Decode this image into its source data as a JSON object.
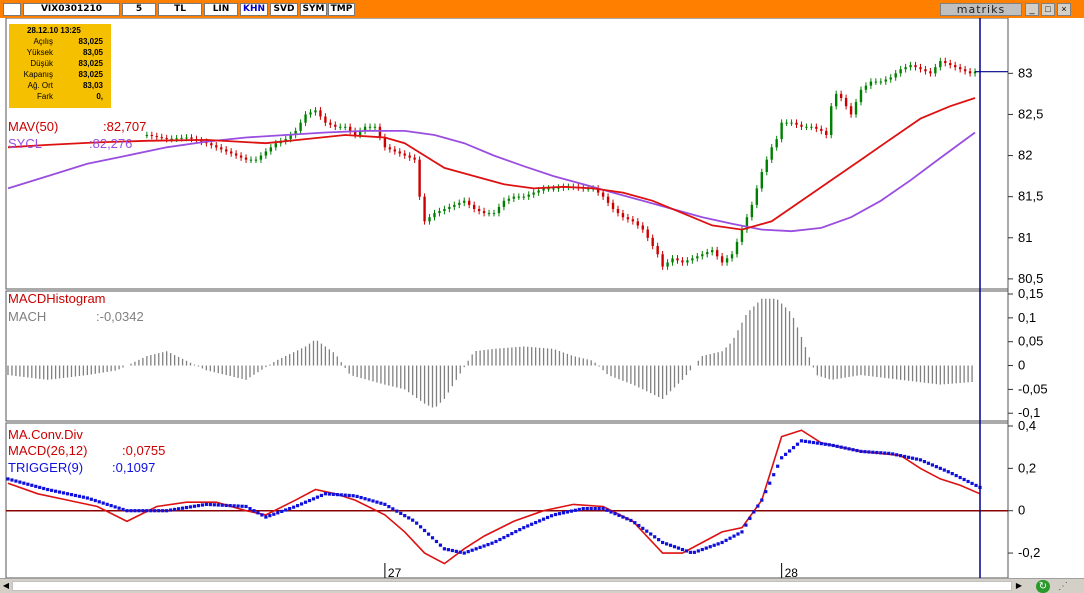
{
  "toolbar": {
    "symbol": "VIX0301210",
    "period": "5",
    "currency": "TL",
    "scale": "LIN",
    "chart_type": "KHN",
    "buttons": [
      "SVD",
      "SYM",
      "TMP"
    ],
    "brand": "matriks"
  },
  "info_box": {
    "datetime": "28.12.10 13:25",
    "rows": [
      {
        "label": "Açılış",
        "value": "83,025"
      },
      {
        "label": "Yüksek",
        "value": "83,05"
      },
      {
        "label": "Düşük",
        "value": "83,025"
      },
      {
        "label": "Kapanış",
        "value": "83,025"
      },
      {
        "label": "Ağ. Ort",
        "value": "83,03"
      },
      {
        "label": "Fark",
        "value": "0,"
      }
    ]
  },
  "colors": {
    "price_up": "#008000",
    "price_down": "#cc0000",
    "mav": "#dd1111",
    "sycl": "#9a4ee0",
    "macd": "#dd1111",
    "trigger": "#1010dd",
    "histogram": "#808080",
    "zero_line": "#8b0000",
    "cursor": "#00008b"
  },
  "chart_data": [
    {
      "type": "line",
      "panel": "price",
      "yticks": [
        {
          "value": 80.5,
          "label": "80,5"
        },
        {
          "value": 81,
          "label": "81"
        },
        {
          "value": 81.5,
          "label": "81,5"
        },
        {
          "value": 82,
          "label": "82"
        },
        {
          "value": 82.5,
          "label": "82,5"
        },
        {
          "value": 83,
          "label": "83"
        }
      ],
      "ylim": [
        80.45,
        83.6
      ],
      "series": [
        {
          "name": "MAV(50)",
          "readout": ":82,707",
          "x": [
            0,
            40,
            90,
            140,
            200,
            260,
            300,
            340,
            380,
            400,
            420,
            440,
            470,
            500,
            530,
            560,
            590,
            620,
            650,
            680,
            710,
            740,
            770,
            800,
            830,
            860,
            890,
            920,
            950,
            975
          ],
          "y": [
            82.1,
            82.13,
            82.16,
            82.18,
            82.19,
            82.15,
            82.2,
            82.25,
            82.22,
            82.15,
            82.0,
            81.85,
            81.75,
            81.65,
            81.6,
            81.62,
            81.6,
            81.55,
            81.45,
            81.3,
            81.15,
            81.1,
            81.2,
            81.45,
            81.7,
            81.95,
            82.2,
            82.45,
            82.6,
            82.7
          ]
        },
        {
          "name": "SYCL",
          "readout": ":82,276",
          "x": [
            0,
            40,
            80,
            120,
            160,
            200,
            240,
            280,
            320,
            360,
            400,
            430,
            460,
            490,
            520,
            550,
            580,
            610,
            640,
            670,
            700,
            730,
            760,
            790,
            820,
            850,
            880,
            910,
            940,
            975
          ],
          "y": [
            81.6,
            81.75,
            81.9,
            82.0,
            82.1,
            82.17,
            82.22,
            82.25,
            82.28,
            82.3,
            82.3,
            82.25,
            82.15,
            82.0,
            81.87,
            81.75,
            81.65,
            81.55,
            81.45,
            81.35,
            81.25,
            81.17,
            81.1,
            81.08,
            81.12,
            81.25,
            81.45,
            81.7,
            81.97,
            82.28
          ]
        },
        {
          "name": "Close",
          "x": [
            140,
            160,
            180,
            200,
            220,
            240,
            250,
            260,
            270,
            280,
            290,
            300,
            310,
            320,
            330,
            340,
            350,
            360,
            370,
            380,
            390,
            400,
            410,
            415,
            420,
            425,
            430,
            440,
            450,
            460,
            470,
            480,
            490,
            500,
            510,
            520,
            530,
            540,
            550,
            560,
            570,
            580,
            590,
            600,
            610,
            620,
            630,
            640,
            650,
            655,
            660,
            670,
            680,
            690,
            700,
            710,
            720,
            730,
            740,
            750,
            760,
            770,
            775,
            780,
            790,
            800,
            810,
            820,
            825,
            830,
            835,
            840,
            850,
            860,
            870,
            880,
            890,
            900,
            910,
            920,
            930,
            940,
            950,
            960,
            970,
            975
          ],
          "y": [
            82.25,
            82.2,
            82.22,
            82.15,
            82.05,
            81.95,
            81.95,
            82.05,
            82.15,
            82.2,
            82.3,
            82.5,
            82.55,
            82.4,
            82.35,
            82.35,
            82.25,
            82.35,
            82.35,
            82.1,
            82.05,
            82.0,
            81.95,
            81.5,
            81.2,
            81.25,
            81.3,
            81.35,
            81.4,
            81.45,
            81.35,
            81.3,
            81.3,
            81.45,
            81.5,
            81.5,
            81.55,
            81.6,
            81.6,
            81.62,
            81.62,
            81.6,
            81.6,
            81.5,
            81.35,
            81.25,
            81.2,
            81.1,
            80.9,
            80.8,
            80.65,
            80.75,
            80.7,
            80.75,
            80.8,
            80.85,
            80.7,
            80.8,
            81.1,
            81.4,
            81.8,
            82.1,
            82.2,
            82.4,
            82.4,
            82.35,
            82.35,
            82.3,
            82.25,
            82.6,
            82.75,
            82.7,
            82.5,
            82.8,
            82.9,
            82.9,
            82.95,
            83.05,
            83.1,
            83.05,
            83.0,
            83.15,
            83.1,
            83.05,
            83.0,
            83.02
          ]
        }
      ]
    },
    {
      "type": "bar",
      "panel": "histogram",
      "title": "MACDHistogram",
      "series_name": "MACH",
      "readout": ":-0,0342",
      "yticks": [
        {
          "value": 0.15,
          "label": "0,15"
        },
        {
          "value": 0.1,
          "label": "0,1"
        },
        {
          "value": 0.05,
          "label": "0,05"
        },
        {
          "value": 0,
          "label": "0"
        },
        {
          "value": -0.05,
          "label": "-0,05"
        },
        {
          "value": -0.1,
          "label": "-0,1"
        }
      ],
      "ylim": [
        -0.11,
        0.15
      ],
      "x": [
        0,
        40,
        80,
        110,
        140,
        160,
        200,
        240,
        270,
        300,
        310,
        330,
        345,
        380,
        400,
        420,
        430,
        440,
        455,
        470,
        490,
        520,
        550,
        570,
        590,
        605,
        630,
        660,
        680,
        700,
        720,
        730,
        745,
        760,
        775,
        790,
        800,
        815,
        830,
        860,
        900,
        940,
        975
      ],
      "values": [
        -0.02,
        -0.03,
        -0.02,
        -0.01,
        0.02,
        0.03,
        -0.01,
        -0.03,
        0.01,
        0.04,
        0.055,
        0.025,
        -0.02,
        -0.04,
        -0.05,
        -0.08,
        -0.09,
        -0.07,
        -0.02,
        0.03,
        0.035,
        0.04,
        0.035,
        0.02,
        0.01,
        -0.02,
        -0.04,
        -0.07,
        -0.03,
        0.02,
        0.03,
        0.05,
        0.11,
        0.14,
        0.14,
        0.11,
        0.06,
        -0.02,
        -0.03,
        -0.02,
        -0.03,
        -0.04,
        -0.034
      ]
    },
    {
      "type": "line",
      "panel": "macd",
      "title": "MA.Conv.Div",
      "yticks": [
        {
          "value": 0.4,
          "label": "0,4"
        },
        {
          "value": 0.2,
          "label": "0,2"
        },
        {
          "value": 0,
          "label": "0"
        },
        {
          "value": -0.2,
          "label": "-0,2"
        }
      ],
      "ylim": [
        -0.28,
        0.4
      ],
      "series": [
        {
          "name": "MACD(26,12)",
          "readout": ":0,0755",
          "x": [
            0,
            30,
            60,
            90,
            120,
            150,
            180,
            210,
            240,
            260,
            290,
            310,
            330,
            350,
            380,
            400,
            420,
            440,
            460,
            480,
            510,
            540,
            570,
            600,
            630,
            660,
            680,
            700,
            720,
            740,
            760,
            780,
            800,
            820,
            840,
            860,
            880,
            900,
            920,
            940,
            960,
            980
          ],
          "y": [
            0.13,
            0.08,
            0.05,
            0.02,
            -0.05,
            0.02,
            0.04,
            0.04,
            0.0,
            -0.02,
            0.05,
            0.1,
            0.08,
            0.05,
            -0.02,
            -0.1,
            -0.2,
            -0.25,
            -0.18,
            -0.12,
            -0.05,
            0.0,
            0.03,
            0.02,
            -0.05,
            -0.2,
            -0.2,
            -0.15,
            -0.1,
            -0.08,
            0.05,
            0.35,
            0.38,
            0.32,
            0.3,
            0.28,
            0.27,
            0.26,
            0.2,
            0.15,
            0.12,
            0.08
          ]
        },
        {
          "name": "TRIGGER(9)",
          "readout": ":0,1097",
          "x": [
            0,
            40,
            80,
            120,
            160,
            200,
            240,
            260,
            290,
            320,
            350,
            380,
            410,
            440,
            460,
            490,
            520,
            550,
            580,
            600,
            630,
            660,
            690,
            720,
            740,
            750,
            760,
            770,
            780,
            800,
            830,
            860,
            890,
            920,
            950,
            980
          ],
          "y": [
            0.15,
            0.1,
            0.06,
            0.0,
            0.0,
            0.03,
            0.02,
            -0.03,
            0.02,
            0.08,
            0.07,
            0.03,
            -0.05,
            -0.18,
            -0.2,
            -0.15,
            -0.08,
            -0.02,
            0.01,
            0.01,
            -0.05,
            -0.15,
            -0.2,
            -0.15,
            -0.1,
            -0.02,
            0.05,
            0.15,
            0.25,
            0.33,
            0.31,
            0.28,
            0.27,
            0.24,
            0.18,
            0.11
          ]
        }
      ]
    }
  ],
  "x_axis": {
    "labels": [
      {
        "x": 380,
        "label": "27"
      },
      {
        "x": 780,
        "label": "28"
      }
    ]
  }
}
